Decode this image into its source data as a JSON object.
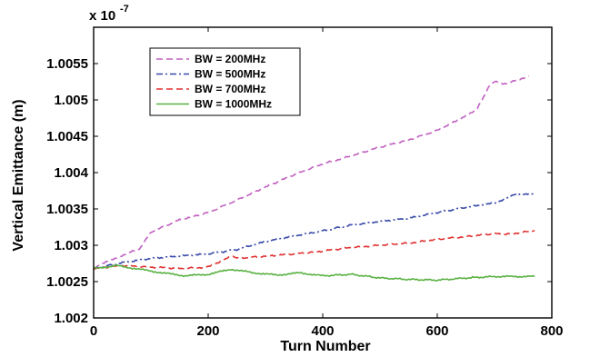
{
  "chart_data": {
    "type": "line",
    "title": "",
    "xlabel": "Turn Number",
    "ylabel": "Vertical Emittance (m)",
    "y_multiplier": "x 10",
    "y_exponent": "-7",
    "xlim": [
      0,
      800
    ],
    "ylim": [
      1.002,
      1.006
    ],
    "x_ticks": [
      0,
      200,
      400,
      600,
      800
    ],
    "x_tick_labels": [
      "0",
      "200",
      "400",
      "600",
      "800"
    ],
    "y_ticks": [
      1.002,
      1.0025,
      1.003,
      1.0035,
      1.004,
      1.0045,
      1.005,
      1.0055
    ],
    "y_tick_labels": [
      "1.002",
      "1.0025",
      "1.003",
      "1.0035",
      "1.004",
      "1.0045",
      "1.005",
      "1.0055"
    ],
    "grid": false,
    "legend_position": "top-left",
    "series": [
      {
        "name": "BW = 200MHz",
        "color": "#c060c0",
        "style": "dashed",
        "x": [
          0,
          40,
          80,
          100,
          150,
          200,
          250,
          300,
          350,
          400,
          450,
          500,
          550,
          600,
          650,
          670,
          690,
          700,
          720,
          760
        ],
        "y": [
          1.00269,
          1.00283,
          1.00295,
          1.00318,
          1.00335,
          1.00345,
          1.00362,
          1.0038,
          1.00397,
          1.00412,
          1.00423,
          1.00435,
          1.00445,
          1.00458,
          1.00478,
          1.00488,
          1.00518,
          1.00525,
          1.00522,
          1.00533
        ]
      },
      {
        "name": "BW = 500MHz",
        "color": "#3848a8",
        "style": "dashdot",
        "x": [
          0,
          50,
          100,
          150,
          200,
          250,
          300,
          350,
          400,
          450,
          500,
          550,
          600,
          650,
          700,
          740,
          770
        ],
        "y": [
          1.00268,
          1.00276,
          1.00282,
          1.00285,
          1.00288,
          1.00294,
          1.00305,
          1.00313,
          1.0032,
          1.00328,
          1.00333,
          1.00337,
          1.00345,
          1.00352,
          1.00358,
          1.00371,
          1.0037
        ]
      },
      {
        "name": "BW = 700MHz",
        "color": "#e03030",
        "style": "dashed",
        "x": [
          0,
          50,
          100,
          150,
          200,
          240,
          250,
          300,
          350,
          400,
          450,
          500,
          550,
          600,
          650,
          700,
          720,
          770
        ],
        "y": [
          1.00268,
          1.00272,
          1.0027,
          1.00268,
          1.0027,
          1.00285,
          1.00282,
          1.00285,
          1.00288,
          1.00292,
          1.00297,
          1.003,
          1.00303,
          1.00308,
          1.00312,
          1.00316,
          1.00315,
          1.0032
        ]
      },
      {
        "name": "BW = 1000MHz",
        "color": "#58b040",
        "style": "solid",
        "x": [
          0,
          40,
          80,
          120,
          160,
          200,
          240,
          280,
          320,
          360,
          400,
          450,
          500,
          550,
          600,
          650,
          700,
          770
        ],
        "y": [
          1.00268,
          1.00272,
          1.00267,
          1.00262,
          1.00258,
          1.0026,
          1.00267,
          1.00262,
          1.00259,
          1.00262,
          1.00258,
          1.0026,
          1.00255,
          1.00253,
          1.00252,
          1.00255,
          1.00257,
          1.00257
        ]
      }
    ]
  }
}
